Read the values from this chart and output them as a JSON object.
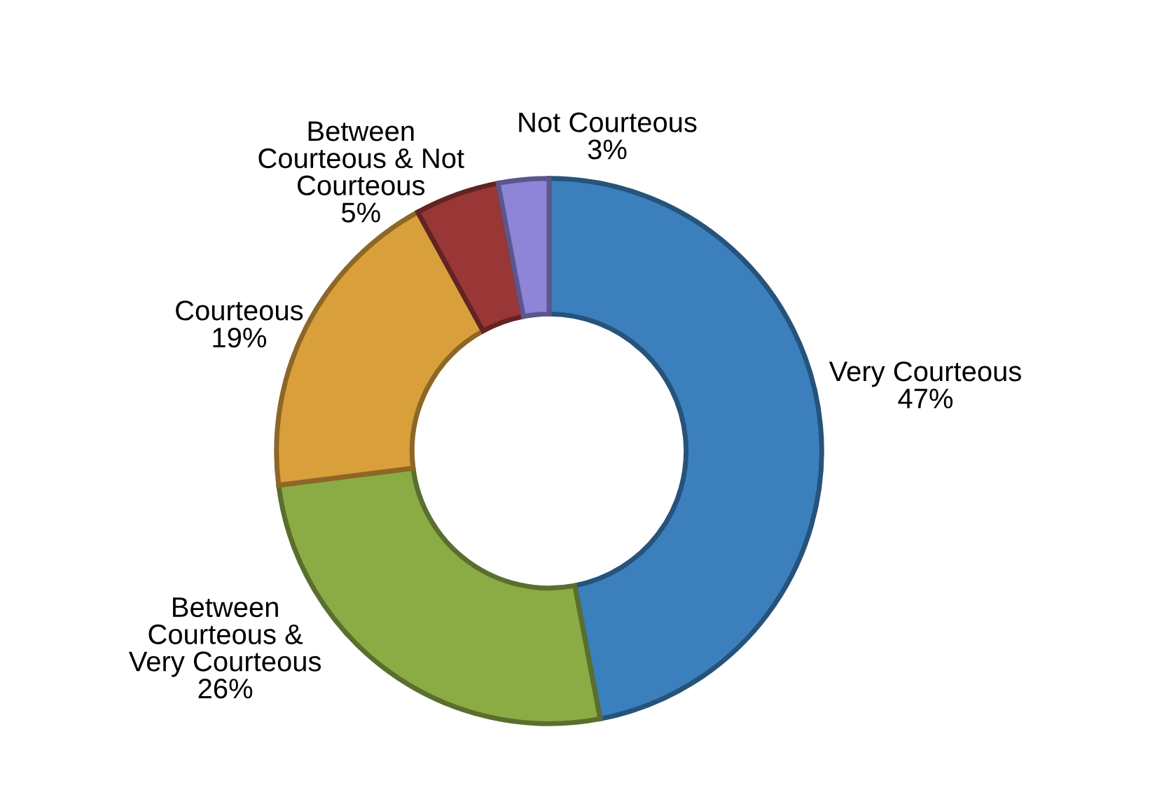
{
  "chart_data": {
    "type": "donut",
    "categories": [
      "Very Courteous",
      "Between\nCourteous &\nVery Courteous",
      "Courteous",
      "Between\nCourteous & Not\nCourteous",
      "Not Courteous"
    ],
    "values": [
      47,
      26,
      19,
      5,
      3
    ],
    "value_labels": [
      "47%",
      "26%",
      "19%",
      "5%",
      "3%"
    ],
    "colors": [
      "#3b80bd",
      "#8bab45",
      "#d99f3b",
      "#993636",
      "#8e84d8"
    ]
  }
}
